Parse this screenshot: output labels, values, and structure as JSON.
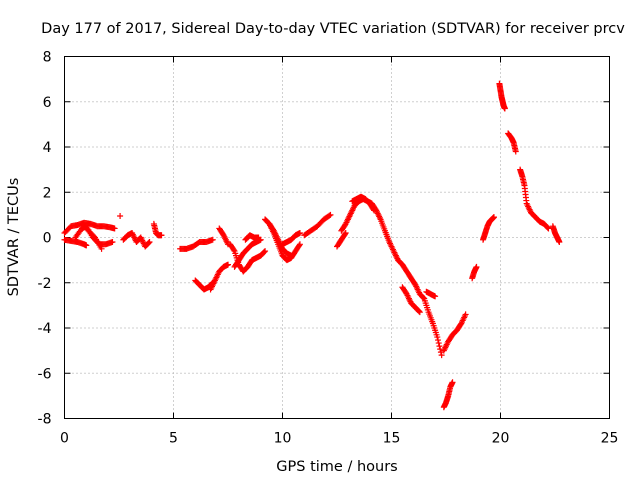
{
  "chart_data": {
    "type": "scatter",
    "title": "Day 177 of 2017, Sidereal Day-to-day VTEC variation (SDTVAR) for receiver prcv",
    "xlabel": "GPS time / hours",
    "ylabel": "SDTVAR / TECUs",
    "xlim": [
      0,
      25
    ],
    "ylim": [
      -8,
      8
    ],
    "x_ticks": [
      0,
      5,
      10,
      15,
      20,
      25
    ],
    "y_ticks": [
      -8,
      -6,
      -4,
      -2,
      0,
      2,
      4,
      6,
      8
    ],
    "x_tick_labels": [
      "0",
      "5",
      "10",
      "15",
      "20",
      "25"
    ],
    "y_tick_labels": [
      "-8",
      "-6",
      "-4",
      "-2",
      "0",
      "2",
      "4",
      "6",
      "8"
    ],
    "grid": true,
    "marker": "+",
    "color": "#ff0000",
    "series": [
      {
        "name": "prcv",
        "segments": [
          {
            "x": [
              0.0,
              0.3,
              0.6,
              0.9,
              1.2,
              1.5,
              1.8,
              2.1,
              2.3
            ],
            "y": [
              0.2,
              0.5,
              0.55,
              0.65,
              0.6,
              0.5,
              0.5,
              0.45,
              0.4
            ]
          },
          {
            "x": [
              0.0,
              0.3,
              0.6,
              0.9,
              1.0
            ],
            "y": [
              -0.1,
              -0.15,
              -0.2,
              -0.3,
              -0.35
            ]
          },
          {
            "x": [
              0.5,
              0.8,
              1.0,
              1.3,
              1.6,
              1.9,
              2.2
            ],
            "y": [
              0.0,
              0.4,
              0.5,
              0.0,
              -0.3,
              -0.3,
              -0.2
            ]
          },
          {
            "x": [
              0.8,
              1.1,
              1.4,
              1.7
            ],
            "y": [
              0.6,
              0.3,
              0.0,
              -0.5
            ]
          },
          {
            "x": [
              2.55
            ],
            "y": [
              0.95
            ]
          },
          {
            "x": [
              2.7,
              2.9,
              3.1,
              3.3,
              3.5,
              3.7,
              3.9
            ],
            "y": [
              -0.1,
              0.1,
              0.2,
              -0.2,
              0.0,
              -0.4,
              -0.2
            ]
          },
          {
            "x": [
              4.1,
              4.2,
              4.3,
              4.45
            ],
            "y": [
              0.6,
              0.2,
              0.1,
              0.1
            ]
          },
          {
            "x": [
              5.3,
              5.6,
              5.9,
              6.2,
              6.5,
              6.8
            ],
            "y": [
              -0.5,
              -0.5,
              -0.4,
              -0.2,
              -0.2,
              -0.1
            ]
          },
          {
            "x": [
              6.0,
              6.2,
              6.4,
              6.6,
              6.8
            ],
            "y": [
              -1.9,
              -2.1,
              -2.3,
              -2.2,
              -2.0
            ]
          },
          {
            "x": [
              6.7,
              6.9,
              7.1,
              7.3,
              7.5
            ],
            "y": [
              -2.3,
              -1.9,
              -1.5,
              -1.3,
              -1.2
            ]
          },
          {
            "x": [
              7.1,
              7.3,
              7.5
            ],
            "y": [
              0.4,
              0.1,
              -0.3
            ]
          },
          {
            "x": [
              7.6,
              7.8,
              8.0,
              8.2,
              8.4,
              8.6,
              8.8,
              9.0,
              9.2
            ],
            "y": [
              -0.3,
              -0.6,
              -1.2,
              -1.5,
              -1.3,
              -1.0,
              -0.9,
              -0.8,
              -0.6
            ]
          },
          {
            "x": [
              7.8,
              8.0,
              8.2,
              8.4,
              8.6,
              8.8,
              9.0
            ],
            "y": [
              -1.3,
              -1.0,
              -0.7,
              -0.5,
              -0.3,
              -0.2,
              -0.1
            ]
          },
          {
            "x": [
              8.3,
              8.5,
              8.7,
              8.9
            ],
            "y": [
              -0.1,
              0.1,
              0.0,
              0.0
            ]
          },
          {
            "x": [
              9.2,
              9.4,
              9.6,
              9.8,
              10.0,
              10.2,
              10.4,
              10.6,
              10.8
            ],
            "y": [
              0.8,
              0.6,
              0.2,
              -0.3,
              -0.8,
              -1.0,
              -0.9,
              -0.6,
              -0.3
            ]
          },
          {
            "x": [
              9.4,
              9.6,
              9.8,
              10.0,
              10.2,
              10.4
            ],
            "y": [
              0.6,
              0.3,
              -0.1,
              -0.5,
              -0.7,
              -0.8
            ]
          },
          {
            "x": [
              10.0,
              10.2,
              10.4,
              10.6,
              10.8
            ],
            "y": [
              -0.3,
              -0.2,
              -0.1,
              0.1,
              0.2
            ]
          },
          {
            "x": [
              11.0,
              11.3,
              11.6,
              11.9,
              12.2
            ],
            "y": [
              0.1,
              0.3,
              0.5,
              0.8,
              1.0
            ]
          },
          {
            "x": [
              12.5,
              12.7,
              12.9
            ],
            "y": [
              -0.4,
              -0.1,
              0.2
            ]
          },
          {
            "x": [
              12.7,
              12.9,
              13.1,
              13.3,
              13.5,
              13.7,
              13.9,
              14.1,
              14.3,
              14.5,
              14.7,
              14.9,
              15.1,
              15.3,
              15.5,
              15.7,
              15.9,
              16.1,
              16.3,
              16.5,
              16.7,
              16.9,
              17.1,
              17.3
            ],
            "y": [
              0.3,
              0.6,
              1.0,
              1.4,
              1.6,
              1.7,
              1.6,
              1.5,
              1.2,
              0.8,
              0.3,
              -0.2,
              -0.6,
              -1.0,
              -1.2,
              -1.5,
              -1.8,
              -2.1,
              -2.5,
              -2.7,
              -3.3,
              -3.8,
              -4.4,
              -5.2
            ]
          },
          {
            "x": [
              13.2,
              13.4,
              13.6,
              13.8,
              14.0,
              14.2
            ],
            "y": [
              1.6,
              1.7,
              1.8,
              1.7,
              1.5,
              1.2
            ]
          },
          {
            "x": [
              15.5,
              15.7,
              15.9,
              16.1,
              16.3
            ],
            "y": [
              -2.2,
              -2.5,
              -2.9,
              -3.1,
              -3.3
            ]
          },
          {
            "x": [
              16.6,
              16.8,
              17.0
            ],
            "y": [
              -2.4,
              -2.5,
              -2.6
            ]
          },
          {
            "x": [
              17.4,
              17.5,
              17.6,
              17.7,
              17.8
            ],
            "y": [
              -7.5,
              -7.3,
              -7.0,
              -6.6,
              -6.4
            ]
          },
          {
            "x": [
              17.4,
              17.6,
              17.8,
              18.0,
              18.2,
              18.4
            ],
            "y": [
              -5.0,
              -4.6,
              -4.3,
              -4.1,
              -3.8,
              -3.4
            ]
          },
          {
            "x": [
              18.7,
              18.8,
              18.9
            ],
            "y": [
              -1.8,
              -1.5,
              -1.3
            ]
          },
          {
            "x": [
              19.2,
              19.3,
              19.4,
              19.5,
              19.6,
              19.7
            ],
            "y": [
              -0.1,
              0.2,
              0.5,
              0.7,
              0.8,
              0.9
            ]
          },
          {
            "x": [
              19.95,
              20.0,
              20.05,
              20.1,
              20.15,
              20.2
            ],
            "y": [
              6.8,
              6.5,
              6.2,
              6.0,
              5.8,
              5.7
            ]
          },
          {
            "x": [
              20.35,
              20.5,
              20.6,
              20.7
            ],
            "y": [
              4.6,
              4.4,
              4.2,
              3.8
            ]
          },
          {
            "x": [
              20.9,
              21.0,
              21.1,
              21.2,
              21.4,
              21.6,
              21.8,
              22.0,
              22.2
            ],
            "y": [
              3.0,
              2.7,
              2.3,
              1.5,
              1.1,
              0.9,
              0.7,
              0.6,
              0.4
            ]
          },
          {
            "x": [
              22.4,
              22.5,
              22.6,
              22.7
            ],
            "y": [
              0.5,
              0.2,
              0.0,
              -0.2
            ]
          }
        ]
      }
    ]
  }
}
